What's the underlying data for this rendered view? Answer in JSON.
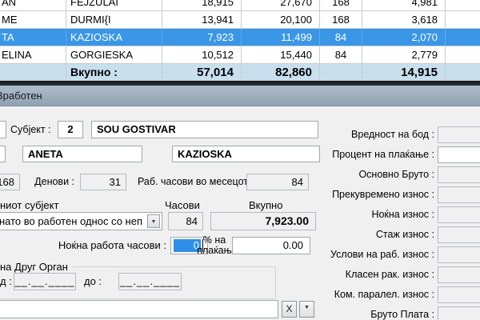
{
  "table": {
    "rows": [
      {
        "first": "AN",
        "last": "FEJZULAI",
        "amount1": "18,915",
        "amount2": "27,670",
        "hours": "168",
        "amount3": "4,981",
        "selected": false
      },
      {
        "first": "ME",
        "last": "DURMI{I",
        "amount1": "13,941",
        "amount2": "20,100",
        "hours": "168",
        "amount3": "3,618",
        "selected": false
      },
      {
        "first": "TA",
        "last": "KAZIOSKA",
        "amount1": "7,923",
        "amount2": "11,499",
        "hours": "84",
        "amount3": "2,070",
        "selected": true
      },
      {
        "first": "ELINA",
        "last": "GORGIESKA",
        "amount1": "10,512",
        "amount2": "15,440",
        "hours": "84",
        "amount3": "2,779",
        "selected": false
      }
    ],
    "total": {
      "label": "Вкупно :",
      "amount1": "57,014",
      "amount2": "82,860",
      "hours": "",
      "amount3": "14,915"
    }
  },
  "dialog": {
    "title": "Вработен",
    "subject": {
      "label": "Субјект :",
      "code": "2",
      "name": "SOU GOSTIVAR"
    },
    "employee": {
      "first_name": "ANETA",
      "last_name": "KAZIOSKA"
    },
    "stats": {
      "hours_field": "168",
      "days_label": "Денови :",
      "days": "31",
      "month_hours_label": "Раб. часови во месецот :",
      "month_hours": "84"
    },
    "work": {
      "subject_label": "ниот субјект",
      "hours_header": "Часови",
      "total_header": "Вкупно",
      "relation_text": "нато во работен однос со неп",
      "hours": "84",
      "total": "7,923.00"
    },
    "night": {
      "label": "Ноќна работа часови :",
      "value": "0",
      "pct_label_line1": "% на",
      "pct_label_line2": "плаќањ",
      "pct_value": "0.00"
    },
    "other_org": {
      "group_label": "на Друг Орган",
      "from_label": "д :",
      "from_value": "__.__.____",
      "to_label": "до :",
      "to_value": "__.__.____",
      "clear_button": "X"
    },
    "right_fields": [
      {
        "label": "Вредност на бод :",
        "value": "",
        "white": false
      },
      {
        "label": "Процент на плаќање :",
        "value": "",
        "white": true
      },
      {
        "label": "Основно Бруто :",
        "value": "",
        "white": false
      },
      {
        "label": "Прекувремено износ :",
        "value": "",
        "white": false
      },
      {
        "label": "Ноќна износ :",
        "value": "",
        "white": false
      },
      {
        "label": "Стаж износ :",
        "value": "",
        "white": false
      },
      {
        "label": "Услови на раб. износ :",
        "value": "",
        "white": false
      },
      {
        "label": "Класен рак. износ :",
        "value": "",
        "white": false
      },
      {
        "label": "Ком. паралел. износ :",
        "value": "",
        "white": false
      },
      {
        "label": "Бруто Плата :",
        "value": "",
        "white": false
      }
    ]
  },
  "colors": {
    "selected_row": "#3a96e7",
    "total_row": "#c8dfee",
    "gridline": "#c6ccd3",
    "titlebar_top": "#b0becb",
    "titlebar_bottom": "#8fa1b2",
    "selection_blue": "#2f8fe6",
    "dialog_bg": "#f0f0f0"
  }
}
